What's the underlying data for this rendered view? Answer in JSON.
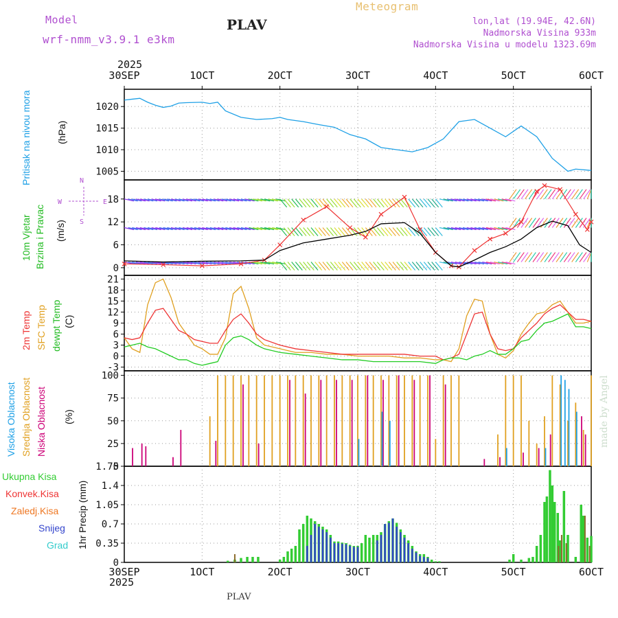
{
  "header": {
    "model_label": "Model",
    "model_name": "wrf-nmm_v3.9.1 e3km",
    "station": "PLAV",
    "meteogram": "Meteogram",
    "lonlat": "lon,lat (19.94E, 42.6N)",
    "altitude": "Nadmorska Visina 933m",
    "model_altitude": "Nadmorska Visina u modelu 1323.69m",
    "footer_station": "PLAV",
    "watermark": "made by Angel"
  },
  "colors": {
    "pressure": "#1ea0e6",
    "wind_label": "#22bb22",
    "wind_speed": "#000000",
    "gust": "#ee3333",
    "t2m": "#ee3333",
    "sfc": "#e0a020",
    "dew": "#22cc22",
    "cloud_high": "#1ea0e6",
    "cloud_mid": "#e0a020",
    "cloud_low": "#cc0077",
    "total_precip": "#33cc33",
    "conv_precip": "#ee3333",
    "frz_precip": "#ee7722",
    "snow": "#3344cc",
    "grad": "#33cccc",
    "purple": "#b050d0"
  },
  "xaxis": {
    "year": "2025",
    "ticks": [
      "30SEP",
      "1OCT",
      "2OCT",
      "3OCT",
      "4OCT",
      "5OCT",
      "6OCT"
    ]
  },
  "chart_data": [
    {
      "type": "line",
      "panel": "pressure",
      "ylabel_name": "Pritisak na nivou mora",
      "ylabel_unit": "(hPa)",
      "ylim": [
        1003,
        1024
      ],
      "yticks": [
        "1005",
        "1010",
        "1015",
        "1020"
      ],
      "ytick_values": [
        1005,
        1010,
        1015,
        1020
      ],
      "x_days": [
        0,
        0.1,
        0.2,
        0.3,
        0.4,
        0.5,
        0.6,
        0.7,
        0.8,
        1.0,
        1.1,
        1.2,
        1.3,
        1.5,
        1.7,
        1.9,
        2.0,
        2.1,
        2.3,
        2.5,
        2.7,
        2.9,
        3.1,
        3.3,
        3.5,
        3.7,
        3.9,
        4.1,
        4.2,
        4.3,
        4.5,
        4.7,
        4.9,
        5.1,
        5.3,
        5.5,
        5.6,
        5.7,
        5.8,
        6.0
      ],
      "values": [
        1021.5,
        1021.7,
        1021.9,
        1021.0,
        1020.3,
        1019.8,
        1020.1,
        1020.8,
        1020.9,
        1021.0,
        1020.7,
        1021.0,
        1019.0,
        1017.5,
        1017.0,
        1017.2,
        1017.5,
        1017.0,
        1016.5,
        1015.8,
        1015.2,
        1013.5,
        1012.5,
        1010.5,
        1010.0,
        1009.5,
        1010.5,
        1012.5,
        1014.5,
        1016.5,
        1017.0,
        1015.0,
        1013.0,
        1015.5,
        1013.0,
        1008.0,
        1006.5,
        1005.0,
        1005.5,
        1005.2
      ]
    },
    {
      "type": "line",
      "panel": "wind",
      "ylabel_name1": "10m Vjetar",
      "ylabel_name2": "Brzina i Pravac",
      "ylabel_unit": "(m/s)",
      "compass": "N",
      "compass_w": "W",
      "compass_e": "E",
      "compass_s": "S",
      "ylim": [
        -2,
        23
      ],
      "yticks": [
        "0",
        "6",
        "12",
        "18"
      ],
      "ytick_values": [
        0,
        6,
        12,
        18
      ],
      "speed_x_days": [
        0,
        0.5,
        1.0,
        1.5,
        1.8,
        2.0,
        2.3,
        2.6,
        2.9,
        3.1,
        3.3,
        3.6,
        3.8,
        4.0,
        4.2,
        4.3,
        4.5,
        4.7,
        4.9,
        5.1,
        5.3,
        5.5,
        5.7,
        5.85,
        6.0
      ],
      "speed": [
        1.8,
        1.5,
        1.7,
        1.8,
        2.0,
        4.5,
        6.5,
        7.5,
        8.5,
        9.5,
        11.5,
        11.8,
        9.0,
        4.0,
        0.5,
        0.2,
        2.0,
        4.0,
        5.5,
        7.5,
        10.5,
        12.2,
        11.0,
        6.0,
        4.0
      ],
      "gust_x_days": [
        0,
        0.5,
        1.0,
        1.5,
        1.8,
        2.0,
        2.3,
        2.6,
        2.9,
        3.1,
        3.3,
        3.6,
        3.8,
        4.0,
        4.2,
        4.3,
        4.5,
        4.7,
        4.9,
        5.1,
        5.3,
        5.4,
        5.6,
        5.8,
        5.95,
        6.0
      ],
      "gust": [
        1.0,
        0.8,
        0.5,
        1.0,
        2.0,
        6.0,
        12.5,
        16.0,
        10.5,
        8.0,
        14.0,
        18.5,
        10.0,
        4.0,
        0.5,
        0.2,
        4.5,
        7.5,
        9.0,
        12.0,
        20.0,
        21.5,
        20.5,
        14.0,
        10.0,
        12.0
      ]
    },
    {
      "type": "line",
      "panel": "temperature",
      "ylabel_name1": "2m Temp",
      "ylabel_name2": "SFC Temp",
      "ylabel_name3": "dewpt Temp",
      "ylabel_unit": "(C)",
      "ylim": [
        -4,
        22
      ],
      "yticks": [
        "-3",
        "0",
        "3",
        "6",
        "9",
        "12",
        "15",
        "18",
        "21"
      ],
      "ytick_values": [
        -3,
        0,
        3,
        6,
        9,
        12,
        15,
        18,
        21
      ],
      "x_days": [
        0,
        0.1,
        0.2,
        0.3,
        0.4,
        0.5,
        0.6,
        0.7,
        0.8,
        0.9,
        1.0,
        1.1,
        1.2,
        1.3,
        1.4,
        1.5,
        1.6,
        1.7,
        1.8,
        2.0,
        2.2,
        2.4,
        2.6,
        2.8,
        3.0,
        3.2,
        3.4,
        3.6,
        3.8,
        4.0,
        4.1,
        4.2,
        4.3,
        4.4,
        4.5,
        4.6,
        4.7,
        4.8,
        4.9,
        5.0,
        5.1,
        5.2,
        5.3,
        5.4,
        5.5,
        5.6,
        5.7,
        5.8,
        5.9,
        6.0
      ],
      "t2m": [
        5,
        4.5,
        5,
        9,
        12.5,
        13,
        10,
        7,
        6,
        4.5,
        4,
        3.5,
        3.5,
        7,
        10,
        11.5,
        9,
        6,
        4.5,
        3,
        2,
        1.5,
        1,
        0.5,
        0.5,
        0.5,
        0.5,
        0.5,
        0,
        0,
        -1,
        -0.5,
        0.5,
        6,
        11.5,
        12,
        6,
        2,
        1.5,
        2,
        5,
        7,
        9,
        11.5,
        13,
        14,
        12,
        10,
        10,
        9.5
      ],
      "sfc": [
        5,
        2,
        1,
        14,
        20,
        21,
        16,
        9,
        6,
        3,
        2,
        0.5,
        0.5,
        5,
        17,
        19,
        13,
        5,
        3,
        2,
        1,
        1,
        0.5,
        0.5,
        0,
        0,
        0,
        -0.5,
        -0.5,
        -1,
        -1,
        -1.5,
        2,
        11,
        15.5,
        15,
        6,
        0.5,
        -0.5,
        1.5,
        6,
        9,
        11.5,
        12,
        14,
        15,
        12,
        9,
        9,
        9.5
      ],
      "dew": [
        2.5,
        3,
        3.5,
        2.5,
        2,
        1,
        0,
        -1,
        -1,
        -2,
        -2.5,
        -2,
        -1.5,
        3,
        5,
        5.5,
        4.5,
        3,
        2,
        1,
        0.5,
        0,
        -0.5,
        -1,
        -1,
        -1.5,
        -1.5,
        -1.5,
        -1.5,
        -2,
        -1,
        -0.5,
        -0.5,
        -1,
        0,
        0.5,
        1.5,
        0.5,
        0.5,
        2,
        4,
        4.5,
        7,
        9,
        9.5,
        10.5,
        11.5,
        8,
        8,
        7.5
      ]
    },
    {
      "type": "bar",
      "panel": "clouds",
      "ylabel_name1": "Visoka Oblacnost",
      "ylabel_name2": "Srednja Oblacnost",
      "ylabel_name3": "Niska Oblacnost",
      "ylabel_unit": "(%)",
      "ylim": [
        0,
        105
      ],
      "yticks": [
        "0",
        "25",
        "50",
        "75",
        "100"
      ],
      "ytick_values": [
        0,
        25,
        50,
        75,
        100
      ],
      "mid": [
        [
          1.1,
          55
        ],
        [
          1.2,
          100
        ],
        [
          1.3,
          100
        ],
        [
          1.4,
          100
        ],
        [
          1.5,
          100
        ],
        [
          1.6,
          100
        ],
        [
          1.7,
          100
        ],
        [
          1.8,
          100
        ],
        [
          1.9,
          100
        ],
        [
          2.0,
          100
        ],
        [
          2.1,
          100
        ],
        [
          2.2,
          100
        ],
        [
          2.3,
          100
        ],
        [
          2.4,
          100
        ],
        [
          2.5,
          100
        ],
        [
          2.6,
          100
        ],
        [
          2.7,
          100
        ],
        [
          2.8,
          100
        ],
        [
          2.9,
          100
        ],
        [
          3.0,
          100
        ],
        [
          3.1,
          100
        ],
        [
          3.2,
          100
        ],
        [
          3.3,
          100
        ],
        [
          3.4,
          100
        ],
        [
          3.5,
          100
        ],
        [
          3.6,
          100
        ],
        [
          3.7,
          100
        ],
        [
          3.8,
          100
        ],
        [
          3.9,
          100
        ],
        [
          4.0,
          30
        ],
        [
          4.1,
          100
        ],
        [
          4.2,
          100
        ],
        [
          4.3,
          100
        ],
        [
          4.8,
          35
        ],
        [
          4.9,
          100
        ],
        [
          5.0,
          100
        ],
        [
          5.1,
          100
        ],
        [
          5.2,
          50
        ],
        [
          5.3,
          25
        ],
        [
          5.4,
          55
        ],
        [
          5.5,
          100
        ],
        [
          5.6,
          90
        ],
        [
          5.7,
          50
        ],
        [
          5.8,
          70
        ],
        [
          5.9,
          40
        ],
        [
          6.0,
          100
        ]
      ],
      "low": [
        [
          0.08,
          20
        ],
        [
          0.2,
          25
        ],
        [
          0.25,
          22
        ],
        [
          0.6,
          10
        ],
        [
          0.7,
          40
        ],
        [
          1.15,
          28
        ],
        [
          1.5,
          90
        ],
        [
          1.7,
          25
        ],
        [
          2.1,
          95
        ],
        [
          2.3,
          80
        ],
        [
          2.5,
          95
        ],
        [
          2.7,
          95
        ],
        [
          2.9,
          95
        ],
        [
          3.1,
          100
        ],
        [
          3.3,
          95
        ],
        [
          3.5,
          100
        ],
        [
          3.7,
          95
        ],
        [
          3.9,
          100
        ],
        [
          4.1,
          90
        ],
        [
          4.6,
          8
        ],
        [
          4.8,
          10
        ],
        [
          5.1,
          15
        ],
        [
          5.3,
          20
        ],
        [
          5.45,
          35
        ],
        [
          5.85,
          55
        ],
        [
          5.9,
          35
        ]
      ],
      "high": [
        [
          3.0,
          30
        ],
        [
          3.3,
          60
        ],
        [
          3.4,
          50
        ],
        [
          4.9,
          20
        ],
        [
          5.4,
          20
        ],
        [
          5.6,
          100
        ],
        [
          5.65,
          95
        ],
        [
          5.7,
          85
        ],
        [
          5.8,
          60
        ]
      ]
    },
    {
      "type": "bar",
      "panel": "precip",
      "ylabel_name": "1hr Precip (mm)",
      "legend_total": "Ukupna Kisa",
      "legend_conv": "Konvek.Kisa",
      "legend_frz": "Zaledj.Kisa",
      "legend_snow": "Snijeg",
      "legend_grad": "Grad",
      "ylim": [
        0,
        1.75
      ],
      "yticks": [
        "0",
        "0.35",
        "0.7",
        "1.05",
        "1.4",
        "1.75"
      ],
      "ytick_values": [
        0,
        0.35,
        0.7,
        1.05,
        1.4,
        1.75
      ],
      "total": [
        [
          1.33,
          0.03
        ],
        [
          1.42,
          0.05
        ],
        [
          1.5,
          0.08
        ],
        [
          1.58,
          0.1
        ],
        [
          1.65,
          0.1
        ],
        [
          1.72,
          0.1
        ],
        [
          2.0,
          0.05
        ],
        [
          2.05,
          0.1
        ],
        [
          2.1,
          0.2
        ],
        [
          2.15,
          0.25
        ],
        [
          2.2,
          0.3
        ],
        [
          2.25,
          0.6
        ],
        [
          2.3,
          0.7
        ],
        [
          2.35,
          0.85
        ],
        [
          2.4,
          0.8
        ],
        [
          2.45,
          0.75
        ],
        [
          2.5,
          0.7
        ],
        [
          2.55,
          0.65
        ],
        [
          2.6,
          0.6
        ],
        [
          2.65,
          0.5
        ],
        [
          2.7,
          0.38
        ],
        [
          2.75,
          0.38
        ],
        [
          2.8,
          0.36
        ],
        [
          2.85,
          0.35
        ],
        [
          2.9,
          0.32
        ],
        [
          2.95,
          0.3
        ],
        [
          3.0,
          0.3
        ],
        [
          3.05,
          0.35
        ],
        [
          3.1,
          0.5
        ],
        [
          3.15,
          0.45
        ],
        [
          3.2,
          0.5
        ],
        [
          3.25,
          0.5
        ],
        [
          3.3,
          0.55
        ],
        [
          3.35,
          0.7
        ],
        [
          3.4,
          0.75
        ],
        [
          3.45,
          0.8
        ],
        [
          3.5,
          0.72
        ],
        [
          3.55,
          0.6
        ],
        [
          3.6,
          0.5
        ],
        [
          3.65,
          0.4
        ],
        [
          3.7,
          0.3
        ],
        [
          3.75,
          0.2
        ],
        [
          3.8,
          0.15
        ],
        [
          3.85,
          0.15
        ],
        [
          3.9,
          0.1
        ],
        [
          3.95,
          0.05
        ],
        [
          4.0,
          0.02
        ],
        [
          4.05,
          0.02
        ],
        [
          4.95,
          0.05
        ],
        [
          5.0,
          0.15
        ],
        [
          5.1,
          0.05
        ],
        [
          5.2,
          0.08
        ],
        [
          5.25,
          0.1
        ],
        [
          5.3,
          0.3
        ],
        [
          5.35,
          0.5
        ],
        [
          5.4,
          1.1
        ],
        [
          5.43,
          1.2
        ],
        [
          5.47,
          1.68
        ],
        [
          5.5,
          1.4
        ],
        [
          5.53,
          1.1
        ],
        [
          5.57,
          0.9
        ],
        [
          5.6,
          0.4
        ],
        [
          5.65,
          1.3
        ],
        [
          5.7,
          0.5
        ],
        [
          5.8,
          0.1
        ],
        [
          5.87,
          1.05
        ],
        [
          5.9,
          0.85
        ],
        [
          5.95,
          0.45
        ],
        [
          6.0,
          0.48
        ]
      ],
      "snow": [
        [
          2.35,
          0.3
        ],
        [
          2.4,
          0.5
        ],
        [
          2.45,
          0.7
        ],
        [
          2.5,
          0.65
        ],
        [
          2.55,
          0.6
        ],
        [
          2.6,
          0.55
        ],
        [
          2.65,
          0.45
        ],
        [
          2.7,
          0.35
        ],
        [
          2.75,
          0.35
        ],
        [
          2.8,
          0.34
        ],
        [
          2.85,
          0.33
        ],
        [
          2.9,
          0.3
        ],
        [
          2.95,
          0.28
        ],
        [
          3.0,
          0.28
        ],
        [
          3.25,
          0.4
        ],
        [
          3.3,
          0.5
        ],
        [
          3.35,
          0.7
        ],
        [
          3.4,
          0.72
        ],
        [
          3.45,
          0.8
        ],
        [
          3.5,
          0.65
        ],
        [
          3.55,
          0.55
        ],
        [
          3.6,
          0.45
        ],
        [
          3.65,
          0.35
        ],
        [
          3.7,
          0.25
        ],
        [
          3.75,
          0.18
        ],
        [
          3.8,
          0.12
        ],
        [
          3.85,
          0.1
        ],
        [
          3.9,
          0.08
        ]
      ],
      "conv": [
        [
          1.42,
          0.15
        ],
        [
          5.58,
          0.3
        ],
        [
          5.62,
          0.5
        ],
        [
          5.68,
          0.35
        ],
        [
          5.92,
          0.85
        ],
        [
          5.98,
          0.3
        ]
      ]
    }
  ]
}
